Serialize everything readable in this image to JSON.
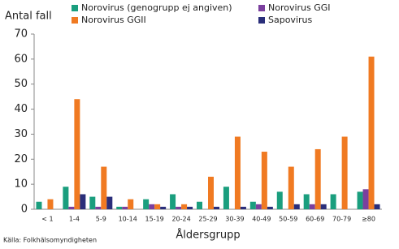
{
  "chart_data": {
    "type": "bar",
    "ylabel": "Antal fall",
    "xlabel": "Åldersgrupp",
    "source": "Källa: Folkhälsomyndigheten",
    "categories": [
      "< 1",
      "1-4",
      "5-9",
      "10-14",
      "15-19",
      "20-24",
      "25-29",
      "30-39",
      "40-49",
      "50-59",
      "60-69",
      "70-79",
      "≥80"
    ],
    "series": [
      {
        "name": "Norovirus (genogrupp ej angiven)",
        "color": "#1a9e7e",
        "values": [
          3,
          9,
          5,
          1,
          4,
          6,
          3,
          9,
          3,
          7,
          6,
          6,
          7
        ]
      },
      {
        "name": "Norovirus GGI",
        "color": "#7b3f9e",
        "values": [
          0,
          1,
          1,
          1,
          2,
          1,
          0,
          0,
          2,
          0,
          2,
          0,
          8
        ]
      },
      {
        "name": "Norovirus GGII",
        "color": "#f07a22",
        "values": [
          4,
          44,
          17,
          4,
          2,
          2,
          13,
          29,
          23,
          17,
          24,
          29,
          61
        ]
      },
      {
        "name": "Sapovirus",
        "color": "#2a2e7a",
        "values": [
          0,
          6,
          5,
          0,
          1,
          1,
          1,
          1,
          1,
          2,
          2,
          0,
          2
        ]
      }
    ],
    "ylim": [
      0,
      70
    ],
    "yticks": [
      0,
      10,
      20,
      30,
      40,
      50,
      60,
      70
    ],
    "grid": false
  }
}
